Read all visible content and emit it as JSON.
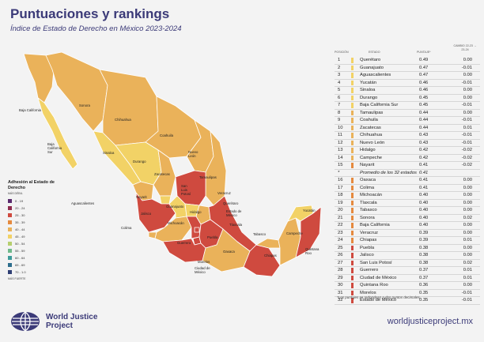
{
  "header": {
    "title": "Puntuaciones y rankings",
    "subtitle": "Índice de Estado de Derecho en México 2023-2024"
  },
  "legend": {
    "title": "Adhesión al Estado de Derecho",
    "range_label": "MÁS DÉBIL",
    "foot_label": "MÁS FUERTE",
    "items": [
      {
        "label": "0 - 19",
        "color": "#5a2a6e"
      },
      {
        "label": "20 - 24",
        "color": "#8e2c4e"
      },
      {
        "label": "25 - 30",
        "color": "#cf4a3f"
      },
      {
        "label": "35 - 39",
        "color": "#e58a3f"
      },
      {
        "label": "40 - 44",
        "color": "#eab25a"
      },
      {
        "label": "45 - 49",
        "color": "#f2d266"
      },
      {
        "label": "50 - 54",
        "color": "#b6cf6e"
      },
      {
        "label": "55 - 59",
        "color": "#6fb98b"
      },
      {
        "label": "60 - 64",
        "color": "#3e9c9a"
      },
      {
        "label": "65 - 69",
        "color": "#2d6e8e"
      },
      {
        "label": "70 - 1.0",
        "color": "#2f3f74"
      }
    ]
  },
  "map_labels": {
    "baja_california": "Baja California",
    "sonora": "Sonora",
    "chihuahua": "Chihuahua",
    "coahuila": "Coahuila",
    "baja_california_sur": "Baja California Sur",
    "sinaloa": "Sinaloa",
    "durango": "Durango",
    "nuevo_leon": "Nuevo León",
    "zacatecas": "Zacatecas",
    "tamaulipas": "Tamaulipas",
    "san_luis_potosi": "San Luis Potosí",
    "aguascalientes": "Aguascalientes",
    "nayarit": "Nayarit",
    "guanajuato": "Guanajuato",
    "queretaro": "Querétaro",
    "veracruz": "Veracruz",
    "jalisco": "Jalisco",
    "hidalgo": "Hidalgo",
    "edomex": "Estado de México",
    "tlaxcala": "Tlaxcala",
    "colima": "Colima",
    "michoacan": "Michoacán",
    "cdmx": "Ciudad de México",
    "morelos": "Morelos",
    "guerrero": "Guerrero",
    "puebla": "Puebla",
    "oaxaca": "Oaxaca",
    "tabasco": "Tabasco",
    "chiapas": "Chiapas",
    "campeche": "Campeche",
    "yucatan": "Yucatán",
    "quintana_roo": "Quintana Roo"
  },
  "map_colors": {
    "strong": "#f2d266",
    "mid": "#eab25a",
    "weak": "#e58a3f",
    "weakest": "#cf4a3f"
  },
  "table": {
    "col_position": "POSICIÓN",
    "col_state": "ESTADO",
    "col_score": "PUNTAJE*",
    "col_change": "CAMBIO 22-23 → 23-24",
    "average_marker": "*",
    "rows": [
      {
        "pos": "1",
        "name": "Querétaro",
        "score": "0.49",
        "change": "0.00"
      },
      {
        "pos": "2",
        "name": "Guanajuato",
        "score": "0.47",
        "change": "-0.01"
      },
      {
        "pos": "3",
        "name": "Aguascalientes",
        "score": "0.47",
        "change": "0.00"
      },
      {
        "pos": "4",
        "name": "Yucatán",
        "score": "0.46",
        "change": "-0.01"
      },
      {
        "pos": "5",
        "name": "Sinaloa",
        "score": "0.46",
        "change": "0.00"
      },
      {
        "pos": "6",
        "name": "Durango",
        "score": "0.45",
        "change": "0.00"
      },
      {
        "pos": "7",
        "name": "Baja California Sur",
        "score": "0.45",
        "change": "-0.01"
      },
      {
        "pos": "8",
        "name": "Tamaulipas",
        "score": "0.44",
        "change": "0.00"
      },
      {
        "pos": "9",
        "name": "Coahuila",
        "score": "0.44",
        "change": "-0.01"
      },
      {
        "pos": "10",
        "name": "Zacatecas",
        "score": "0.44",
        "change": "0.01"
      },
      {
        "pos": "11",
        "name": "Chihuahua",
        "score": "0.43",
        "change": "-0.01"
      },
      {
        "pos": "12",
        "name": "Nuevo León",
        "score": "0.43",
        "change": "-0.01"
      },
      {
        "pos": "13",
        "name": "Hidalgo",
        "score": "0.42",
        "change": "-0.02"
      },
      {
        "pos": "14",
        "name": "Campeche",
        "score": "0.42",
        "change": "-0.02"
      },
      {
        "pos": "15",
        "name": "Nayarit",
        "score": "0.41",
        "change": "-0.02"
      },
      {
        "pos": "*",
        "name": "Promedio de los 32 estados",
        "score": "0.41",
        "change": "",
        "avg": true
      },
      {
        "pos": "16",
        "name": "Oaxaca",
        "score": "0.41",
        "change": "0.00"
      },
      {
        "pos": "17",
        "name": "Colima",
        "score": "0.41",
        "change": "0.00"
      },
      {
        "pos": "18",
        "name": "Michoacán",
        "score": "0.40",
        "change": "0.00"
      },
      {
        "pos": "19",
        "name": "Tlaxcala",
        "score": "0.40",
        "change": "0.00"
      },
      {
        "pos": "20",
        "name": "Tabasco",
        "score": "0.40",
        "change": "0.00"
      },
      {
        "pos": "21",
        "name": "Sonora",
        "score": "0.40",
        "change": "0.02"
      },
      {
        "pos": "22",
        "name": "Baja California",
        "score": "0.40",
        "change": "0.00"
      },
      {
        "pos": "23",
        "name": "Veracruz",
        "score": "0.39",
        "change": "0.00"
      },
      {
        "pos": "24",
        "name": "Chiapas",
        "score": "0.39",
        "change": "0.01"
      },
      {
        "pos": "25",
        "name": "Puebla",
        "score": "0.38",
        "change": "0.00"
      },
      {
        "pos": "26",
        "name": "Jalisco",
        "score": "0.38",
        "change": "0.00"
      },
      {
        "pos": "27",
        "name": "San Luis Potosí",
        "score": "0.38",
        "change": "0.02"
      },
      {
        "pos": "28",
        "name": "Guerrero",
        "score": "0.37",
        "change": "0.01"
      },
      {
        "pos": "29",
        "name": "Ciudad de México",
        "score": "0.37",
        "change": "0.01"
      },
      {
        "pos": "30",
        "name": "Quintana Roo",
        "score": "0.36",
        "change": "0.00"
      },
      {
        "pos": "31",
        "name": "Morelos",
        "score": "0.35",
        "change": "-0.01"
      },
      {
        "pos": "32",
        "name": "Estado de México",
        "score": "0.35",
        "change": "-0.01"
      }
    ],
    "footnote": "*Los puntajes se redondean a dos puntos decimales."
  },
  "footer": {
    "org_line1": "World Justice",
    "org_line2": "Project",
    "website": "worldjusticeproject.mx"
  }
}
